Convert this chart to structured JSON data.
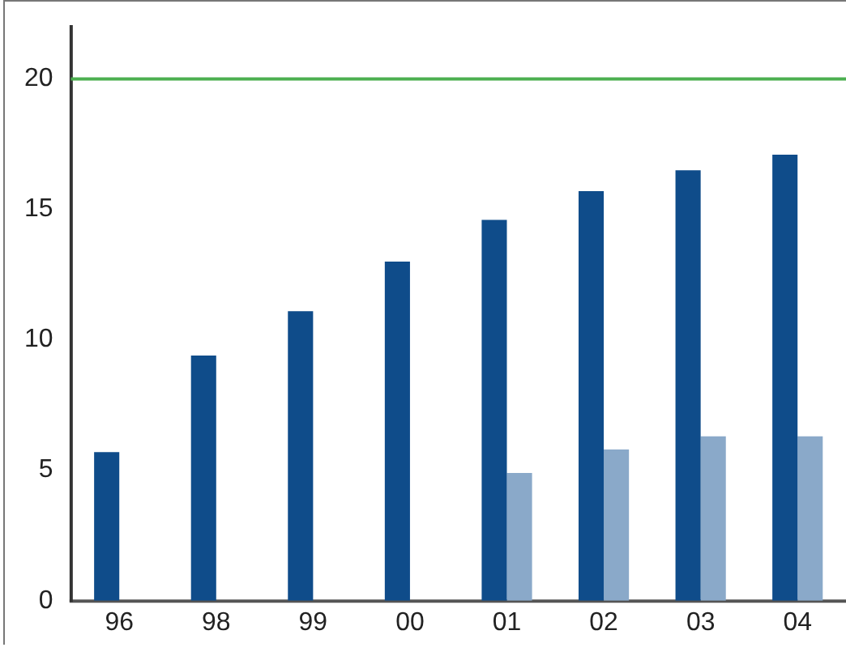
{
  "chart_data": {
    "type": "bar",
    "categories": [
      "96",
      "98",
      "99",
      "00",
      "01",
      "02",
      "03",
      "04"
    ],
    "series": [
      {
        "color": "#0f4c8a",
        "values": [
          5.7,
          9.4,
          11.1,
          13.0,
          14.6,
          15.7,
          16.5,
          17.1
        ]
      },
      {
        "color": "#8aa9c9",
        "values": [
          null,
          null,
          null,
          null,
          4.9,
          5.8,
          6.3,
          6.3
        ]
      }
    ],
    "ylim": [
      0,
      22
    ],
    "yticks": [
      0,
      5,
      10,
      15,
      20
    ],
    "grid": false,
    "legend": false,
    "ref_lines": [
      {
        "axis": "y",
        "value": 20,
        "color": "#4caf50"
      }
    ]
  }
}
